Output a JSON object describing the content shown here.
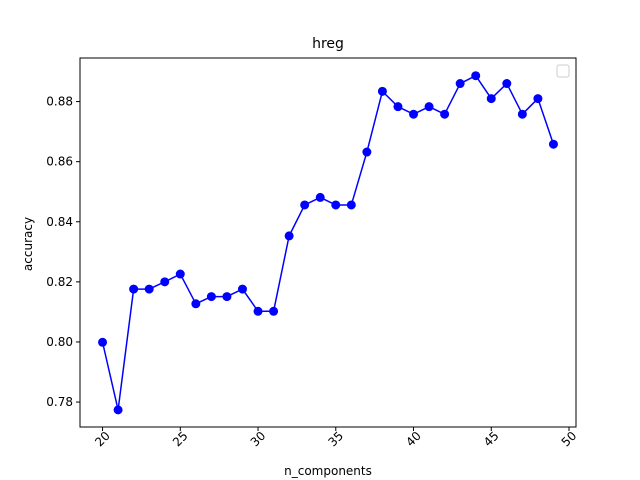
{
  "chart_data": {
    "type": "line",
    "title": "hreg",
    "xlabel": "n_components",
    "ylabel": "accuracy",
    "xlim": [
      18.55,
      50.45
    ],
    "ylim": [
      0.7717,
      0.8945
    ],
    "x_ticks": [
      20,
      25,
      30,
      35,
      40,
      45,
      50
    ],
    "x_tick_labels": [
      "20",
      "25",
      "30",
      "35",
      "40",
      "45",
      "50"
    ],
    "y_ticks": [
      0.78,
      0.8,
      0.82,
      0.84,
      0.86,
      0.88
    ],
    "y_tick_labels": [
      "0.78",
      "0.80",
      "0.82",
      "0.84",
      "0.86",
      "0.88"
    ],
    "x_tick_rotation": 45,
    "grid": false,
    "legend": {
      "placement": "upper right",
      "entries": []
    },
    "series": [
      {
        "color": "#0000ff",
        "marker": "circle",
        "x": [
          20,
          21,
          22,
          23,
          24,
          25,
          26,
          27,
          28,
          29,
          30,
          31,
          32,
          33,
          34,
          35,
          36,
          37,
          38,
          39,
          40,
          41,
          42,
          43,
          44,
          45,
          46,
          47,
          48,
          49
        ],
        "y": [
          0.7999,
          0.7774,
          0.8176,
          0.8176,
          0.82,
          0.8226,
          0.8127,
          0.8151,
          0.8151,
          0.8176,
          0.8102,
          0.8102,
          0.8353,
          0.8456,
          0.8481,
          0.8456,
          0.8456,
          0.8632,
          0.8834,
          0.8783,
          0.8758,
          0.8783,
          0.8758,
          0.886,
          0.8886,
          0.881,
          0.886,
          0.8758,
          0.881,
          0.8658
        ]
      }
    ]
  }
}
